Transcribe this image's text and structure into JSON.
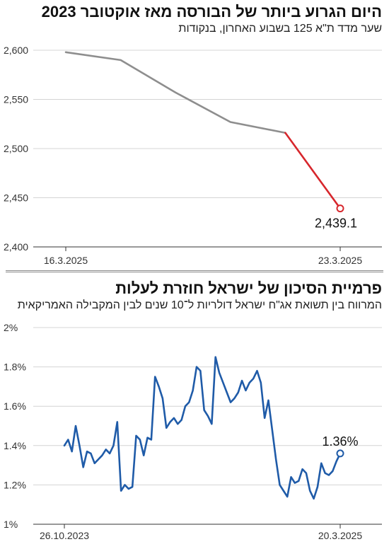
{
  "chart_data": [
    {
      "type": "line",
      "title": "היום הגרוע ביותר של הבורסה מאז אוקטובר 2023",
      "subtitle": "שער מדד ת\"א 125 בשבוע האחרון, בנקודות",
      "ylim": [
        2400,
        2600
      ],
      "grid": true,
      "yticks": [
        {
          "value": 2400,
          "label": "2,400"
        },
        {
          "value": 2450,
          "label": "2,450"
        },
        {
          "value": 2500,
          "label": "2,500"
        },
        {
          "value": 2550,
          "label": "2,550"
        },
        {
          "value": 2600,
          "label": "2,600"
        }
      ],
      "xticks": [
        {
          "index": 0,
          "label": "16.3.2025"
        },
        {
          "index": 5,
          "label": "23.3.2025"
        }
      ],
      "series": [
        {
          "values": [
            2598,
            2590,
            2557,
            2527,
            2516,
            2439.1
          ],
          "color": "#8e8e8e"
        }
      ],
      "highlight": {
        "from_index": 4,
        "to_index": 5,
        "color": "#d7262c"
      },
      "annotation": {
        "index": 5,
        "text": "2,439.1"
      }
    },
    {
      "type": "line",
      "title": "פרמיית הסיכון של ישראל חוזרת לעלות",
      "subtitle": "המרווח בין תשואת אג\"ח ישראל דולריות ל־10 שנים לבין המקבילה האמריקאית",
      "ylim": [
        1,
        2
      ],
      "grid": true,
      "yticks": [
        {
          "value": 1,
          "label": "1%"
        },
        {
          "value": 1.2,
          "label": "1.2%"
        },
        {
          "value": 1.4,
          "label": "1.4%"
        },
        {
          "value": 1.6,
          "label": "1.6%"
        },
        {
          "value": 1.8,
          "label": "1.8%"
        },
        {
          "value": 2,
          "label": "2%"
        }
      ],
      "xticks": [
        {
          "index": 0,
          "label": "26.10.2023"
        },
        {
          "index": 73,
          "label": "20.3.2025"
        }
      ],
      "series": [
        {
          "values": [
            1.4,
            1.43,
            1.37,
            1.5,
            1.4,
            1.29,
            1.37,
            1.36,
            1.31,
            1.33,
            1.35,
            1.38,
            1.36,
            1.4,
            1.52,
            1.17,
            1.2,
            1.18,
            1.19,
            1.45,
            1.43,
            1.35,
            1.44,
            1.43,
            1.75,
            1.7,
            1.64,
            1.49,
            1.52,
            1.54,
            1.51,
            1.53,
            1.6,
            1.62,
            1.68,
            1.8,
            1.78,
            1.58,
            1.55,
            1.51,
            1.85,
            1.77,
            1.72,
            1.67,
            1.62,
            1.64,
            1.67,
            1.73,
            1.68,
            1.72,
            1.74,
            1.78,
            1.72,
            1.54,
            1.63,
            1.48,
            1.33,
            1.2,
            1.17,
            1.14,
            1.24,
            1.21,
            1.22,
            1.28,
            1.26,
            1.17,
            1.13,
            1.19,
            1.31,
            1.26,
            1.25,
            1.27,
            1.32,
            1.36
          ],
          "color": "#1f5ba8"
        }
      ],
      "annotation": {
        "index": 73,
        "text": "1.36%"
      }
    }
  ]
}
